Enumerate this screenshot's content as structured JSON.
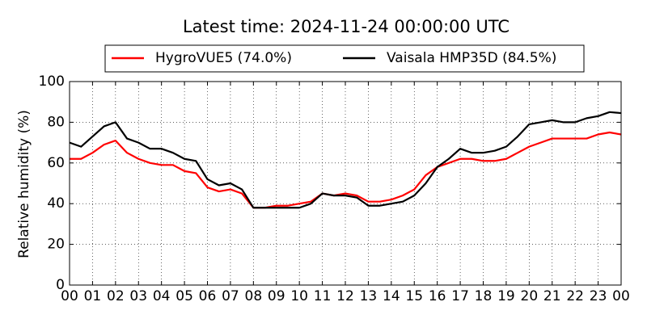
{
  "chart_data": {
    "type": "line",
    "title": "Latest time: 2024-11-24 00:00:00 UTC",
    "ylabel": "Relative humidity (%)",
    "x": [
      0,
      0.5,
      1,
      1.5,
      2,
      2.5,
      3,
      3.5,
      4,
      4.5,
      5,
      5.5,
      6,
      6.5,
      7,
      7.5,
      8,
      8.5,
      9,
      9.5,
      10,
      10.5,
      11,
      11.5,
      12,
      12.5,
      13,
      13.5,
      14,
      14.5,
      15,
      15.5,
      16,
      16.5,
      17,
      17.5,
      18,
      18.5,
      19,
      19.5,
      20,
      20.5,
      21,
      21.5,
      22,
      22.5,
      23,
      23.5,
      24
    ],
    "series": [
      {
        "name": "HygroVUE5 (74.0%)",
        "color": "#ff0000",
        "values": [
          62,
          62,
          65,
          69,
          71,
          65,
          62,
          60,
          59,
          59,
          56,
          55,
          48,
          46,
          47,
          45,
          38,
          38,
          39,
          39,
          40,
          41,
          45,
          44,
          45,
          44,
          41,
          41,
          42,
          44,
          47,
          54,
          58,
          60,
          62,
          62,
          61,
          61,
          62,
          65,
          68,
          70,
          72,
          72,
          72,
          72,
          74,
          75,
          74
        ]
      },
      {
        "name": "Vaisala HMP35D (84.5%)",
        "color": "#000000",
        "values": [
          70,
          68,
          73,
          78,
          80,
          72,
          70,
          67,
          67,
          65,
          62,
          61,
          52,
          49,
          50,
          47,
          38,
          38,
          38,
          38,
          38,
          40,
          45,
          44,
          44,
          43,
          39,
          39,
          40,
          41,
          44,
          50,
          58,
          62,
          67,
          65,
          65,
          66,
          68,
          73,
          79,
          80,
          81,
          80,
          80,
          82,
          83,
          85,
          84.5
        ]
      }
    ],
    "xlim": [
      0,
      24
    ],
    "xticks": [
      {
        "value": 0,
        "label": "00"
      },
      {
        "value": 1,
        "label": "01"
      },
      {
        "value": 2,
        "label": "02"
      },
      {
        "value": 3,
        "label": "03"
      },
      {
        "value": 4,
        "label": "04"
      },
      {
        "value": 5,
        "label": "05"
      },
      {
        "value": 6,
        "label": "06"
      },
      {
        "value": 7,
        "label": "07"
      },
      {
        "value": 8,
        "label": "08"
      },
      {
        "value": 9,
        "label": "09"
      },
      10,
      11,
      12,
      13,
      14,
      15,
      16,
      17,
      18,
      19,
      20,
      21,
      22,
      23,
      {
        "value": 24,
        "label": "00"
      }
    ],
    "ylim": [
      0,
      100
    ],
    "yticks": [
      0,
      20,
      40,
      60,
      80,
      100
    ],
    "grid": true,
    "legend": "top"
  }
}
